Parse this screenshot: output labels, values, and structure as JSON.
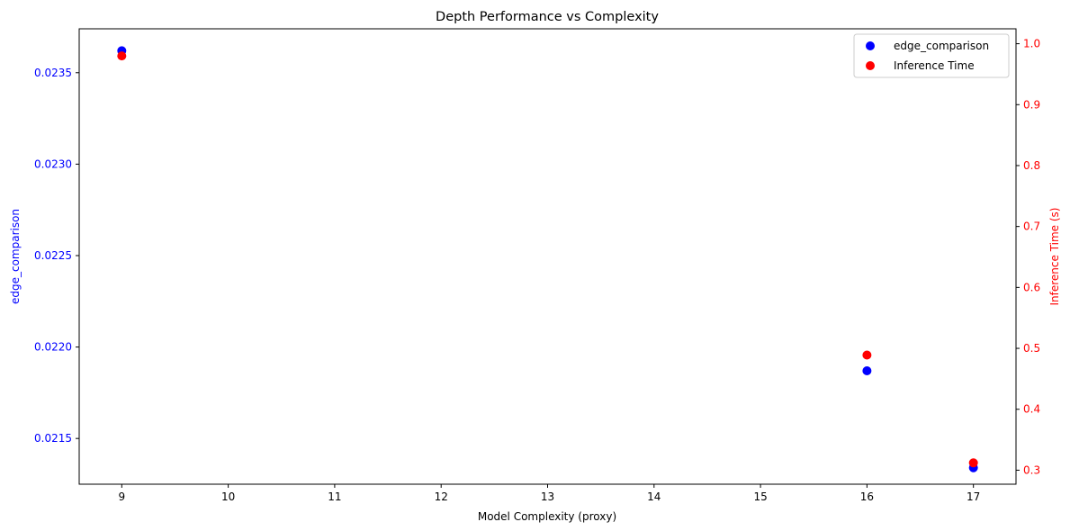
{
  "chart_data": {
    "type": "scatter",
    "title": "Depth Performance vs Complexity",
    "xlabel": "Model Complexity (proxy)",
    "ylabel_left": "edge_comparison",
    "ylabel_right": "Inference Time (s)",
    "xlim": [
      8.6,
      17.4
    ],
    "xticks": [
      9,
      10,
      11,
      12,
      13,
      14,
      15,
      16,
      17
    ],
    "ylim_left": [
      0.02125,
      0.02374
    ],
    "yticks_left": [
      0.0215,
      0.022,
      0.0225,
      0.023,
      0.0235
    ],
    "yticks_left_labels": [
      "0.0215",
      "0.0220",
      "0.0225",
      "0.0230",
      "0.0235"
    ],
    "ylim_right": [
      0.277,
      1.0245
    ],
    "yticks_right": [
      0.3,
      0.4,
      0.5,
      0.6,
      0.7,
      0.8,
      0.9,
      1.0
    ],
    "yticks_right_labels": [
      "0.3",
      "0.4",
      "0.5",
      "0.6",
      "0.7",
      "0.8",
      "0.9",
      "1.0"
    ],
    "left_axis_color": "#0000ff",
    "right_axis_color": "#ff0000",
    "grid": false,
    "legend_position": "top-right",
    "series": [
      {
        "name": "edge_comparison",
        "axis": "left",
        "color": "#0000ff",
        "x": [
          9,
          16,
          17
        ],
        "y": [
          0.02362,
          0.02187,
          0.02134
        ]
      },
      {
        "name": "Inference Time",
        "axis": "right",
        "color": "#ff0000",
        "x": [
          9,
          16,
          17
        ],
        "y": [
          0.98,
          0.489,
          0.312
        ]
      }
    ]
  }
}
